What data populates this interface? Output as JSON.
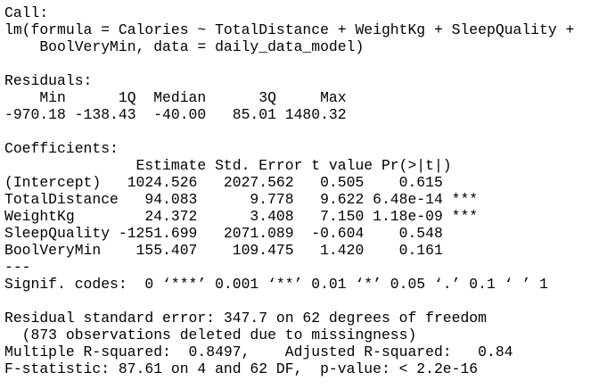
{
  "blocks": [
    [
      "Call:",
      "lm(formula = Calories ~ TotalDistance + WeightKg + SleepQuality + ",
      "    BoolVeryMin, data = daily_data_model)"
    ],
    [
      "Residuals:",
      "    Min      1Q  Median      3Q     Max ",
      "-970.18 -138.43  -40.00   85.01 1480.32 "
    ],
    [
      "Coefficients:",
      "               Estimate Std. Error t value Pr(>|t|)    ",
      "(Intercept)   1024.526   2027.562   0.505    0.615    ",
      "TotalDistance   94.083      9.778   9.622 6.48e-14 ***",
      "WeightKg        24.372      3.408   7.150 1.18e-09 ***",
      "SleepQuality -1251.699   2071.089  -0.604    0.548    ",
      "BoolVeryMin    155.407    109.475   1.420    0.161    ",
      "---",
      "Signif. codes:  0 ‘***’ 0.001 ‘**’ 0.01 ‘*’ 0.05 ‘.’ 0.1 ‘ ’ 1"
    ],
    [
      "Residual standard error: 347.7 on 62 degrees of freedom",
      "  (873 observations deleted due to missingness)",
      "Multiple R-squared:  0.8497,    Adjusted R-squared:   0.84 ",
      "F-statistic: 87.61 on 4 and 62 DF,  p-value: < 2.2e-16"
    ]
  ]
}
